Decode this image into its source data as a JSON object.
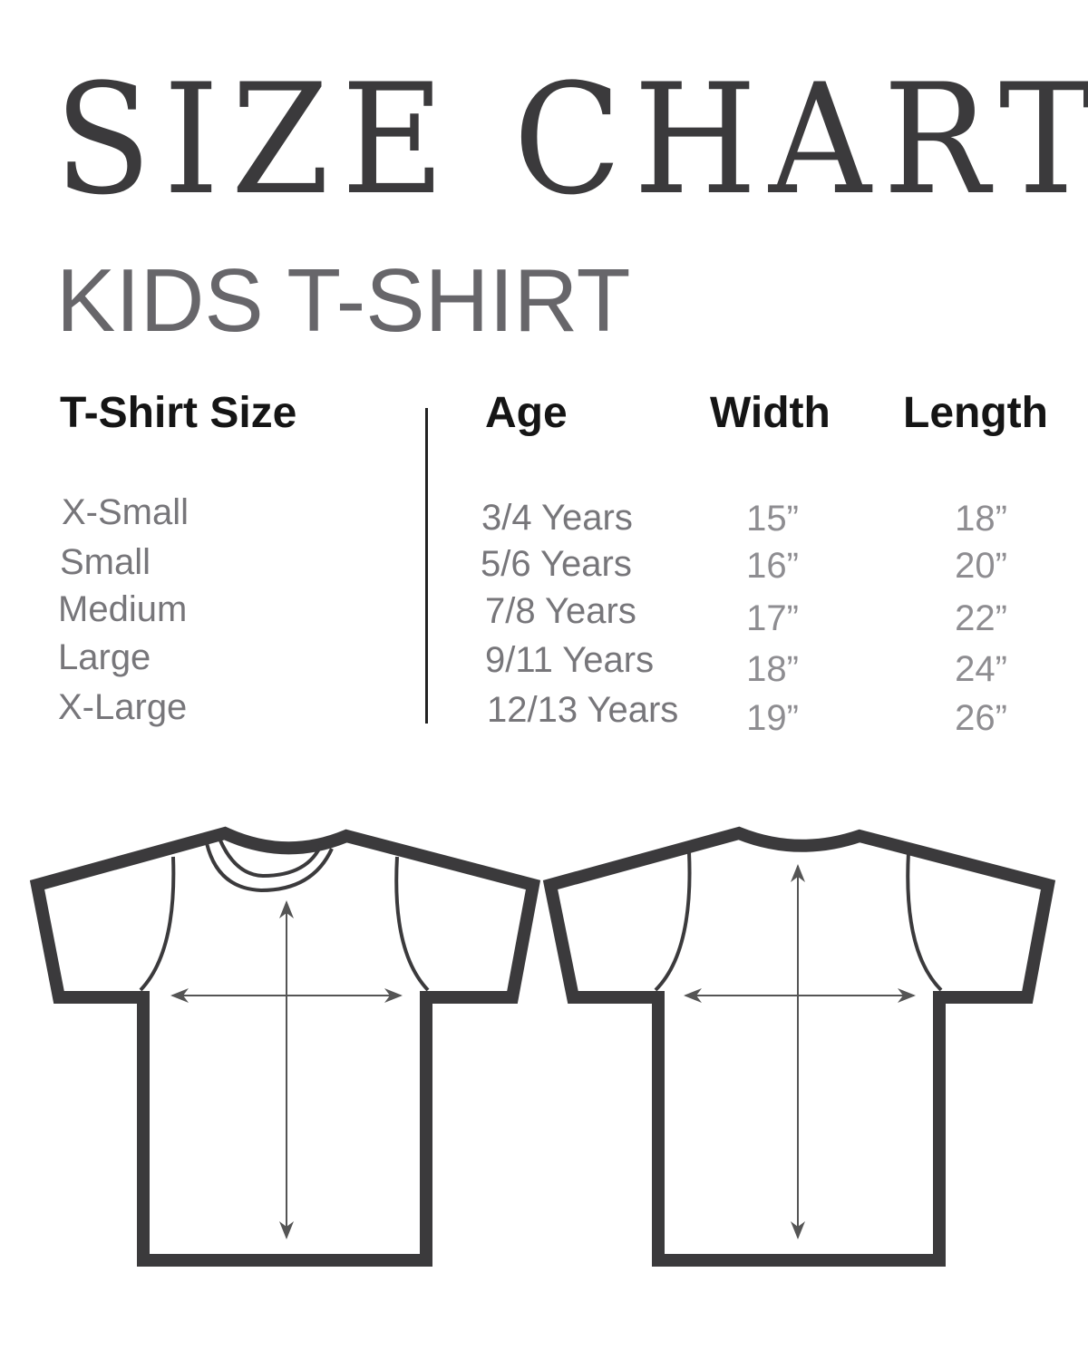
{
  "title": "SIZE CHART",
  "subtitle": "KIDS T-SHIRT",
  "table": {
    "headers": [
      "T-Shirt Size",
      "Age",
      "Width",
      "Length"
    ],
    "rows": [
      {
        "size": "X-Small",
        "age": "3/4 Years",
        "width": "15”",
        "length": "18”"
      },
      {
        "size": "Small",
        "age": "5/6 Years",
        "width": "16”",
        "length": "20”"
      },
      {
        "size": "Medium",
        "age": "7/8 Years",
        "width": "17”",
        "length": "22”"
      },
      {
        "size": "Large",
        "age": "9/11 Years",
        "width": "18”",
        "length": "24”"
      },
      {
        "size": "X-Large",
        "age": "12/13 Years",
        "width": "19”",
        "length": "26”"
      }
    ]
  },
  "colors": {
    "outline": "#3b3a3c",
    "text_gray": "#77767a"
  },
  "illustrations": [
    "t-shirt-front-icon",
    "t-shirt-back-icon"
  ]
}
